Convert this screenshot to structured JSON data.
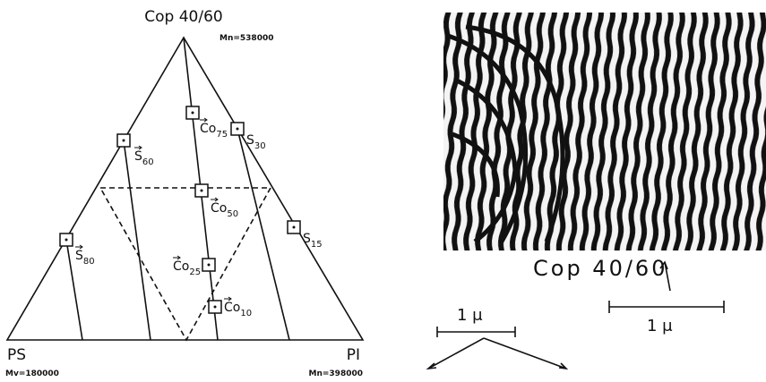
{
  "diagram": {
    "apex": {
      "label": "Cop 40/60",
      "note": "Mn=538000"
    },
    "left": {
      "label": "PS",
      "note": "Mv=180000"
    },
    "right": {
      "label": "PI",
      "note": "Mn=398000"
    },
    "points": [
      {
        "main": "Co",
        "sub": "75",
        "arrow": true
      },
      {
        "main": "S",
        "sub": "30",
        "arrow": false
      },
      {
        "main": "S",
        "sub": "60",
        "arrow": true
      },
      {
        "main": "Co",
        "sub": "50",
        "arrow": true
      },
      {
        "main": "S",
        "sub": "15",
        "arrow": false
      },
      {
        "main": "S",
        "sub": "80",
        "arrow": true
      },
      {
        "main": "Co",
        "sub": "25",
        "arrow": true
      },
      {
        "main": "Co",
        "sub": "10",
        "arrow": true
      }
    ]
  },
  "micrograph": {
    "caption": "Cop 40/60",
    "scale_right": "1 μ",
    "scale_left": "1 μ"
  }
}
